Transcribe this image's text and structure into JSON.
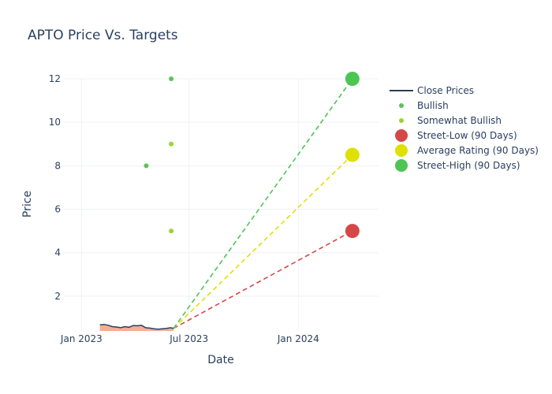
{
  "chart_data": {
    "type": "scatter",
    "title": "APTO Price Vs. Targets",
    "xlabel": "Date",
    "ylabel": "Price",
    "xlim": [
      "2022-12-01",
      "2024-05-15"
    ],
    "ylim": [
      0.4,
      12
    ],
    "x_ticks": [
      {
        "date": "2023-01-01",
        "label": "Jan 2023"
      },
      {
        "date": "2023-07-01",
        "label": "Jul 2023"
      },
      {
        "date": "2024-01-01",
        "label": "Jan 2024"
      }
    ],
    "y_ticks": [
      2,
      4,
      6,
      8,
      10,
      12
    ],
    "close_prices": {
      "name": "Close Prices",
      "color": "#2a3f5f",
      "fill_color": "#f4a582",
      "points": [
        [
          "2023-02-01",
          0.68
        ],
        [
          "2023-02-08",
          0.7
        ],
        [
          "2023-02-15",
          0.66
        ],
        [
          "2023-02-22",
          0.6
        ],
        [
          "2023-03-01",
          0.58
        ],
        [
          "2023-03-08",
          0.55
        ],
        [
          "2023-03-15",
          0.6
        ],
        [
          "2023-03-22",
          0.57
        ],
        [
          "2023-03-29",
          0.65
        ],
        [
          "2023-04-05",
          0.64
        ],
        [
          "2023-04-12",
          0.66
        ],
        [
          "2023-04-19",
          0.55
        ],
        [
          "2023-04-26",
          0.53
        ],
        [
          "2023-05-03",
          0.5
        ],
        [
          "2023-05-10",
          0.48
        ],
        [
          "2023-05-17",
          0.5
        ],
        [
          "2023-05-24",
          0.52
        ],
        [
          "2023-05-31",
          0.55
        ],
        [
          "2023-06-05",
          0.52
        ]
      ]
    },
    "series": [
      {
        "name": "Bullish",
        "color": "#5cc35c",
        "marker": "small",
        "points": [
          [
            "2023-04-20",
            8
          ],
          [
            "2023-06-01",
            12
          ]
        ]
      },
      {
        "name": "Somewhat Bullish",
        "color": "#97d530",
        "marker": "small",
        "points": [
          [
            "2023-06-01",
            9
          ],
          [
            "2023-06-01",
            5
          ]
        ]
      },
      {
        "name": "Street-Low (90 Days)",
        "color": "#d64848",
        "marker": "large",
        "start": [
          "2023-06-05",
          0.52
        ],
        "points": [
          [
            "2024-04-01",
            5
          ]
        ]
      },
      {
        "name": "Average Rating (90 Days)",
        "color": "#dfe003",
        "marker": "large",
        "start": [
          "2023-06-05",
          0.52
        ],
        "points": [
          [
            "2024-04-01",
            8.5
          ]
        ]
      },
      {
        "name": "Street-High (90 Days)",
        "color": "#4dc553",
        "marker": "large",
        "start": [
          "2023-06-05",
          0.52
        ],
        "points": [
          [
            "2024-04-01",
            12
          ]
        ]
      }
    ],
    "legend": [
      {
        "name": "Close Prices",
        "kind": "line",
        "color": "#2a3f5f"
      },
      {
        "name": "Bullish",
        "kind": "small",
        "color": "#5cc35c"
      },
      {
        "name": "Somewhat Bullish",
        "kind": "small",
        "color": "#97d530"
      },
      {
        "name": "Street-Low (90 Days)",
        "kind": "large",
        "color": "#d64848"
      },
      {
        "name": "Average Rating (90 Days)",
        "kind": "large",
        "color": "#dfe003"
      },
      {
        "name": "Street-High (90 Days)",
        "kind": "large",
        "color": "#4dc553"
      }
    ],
    "legend_position": "top-right"
  }
}
